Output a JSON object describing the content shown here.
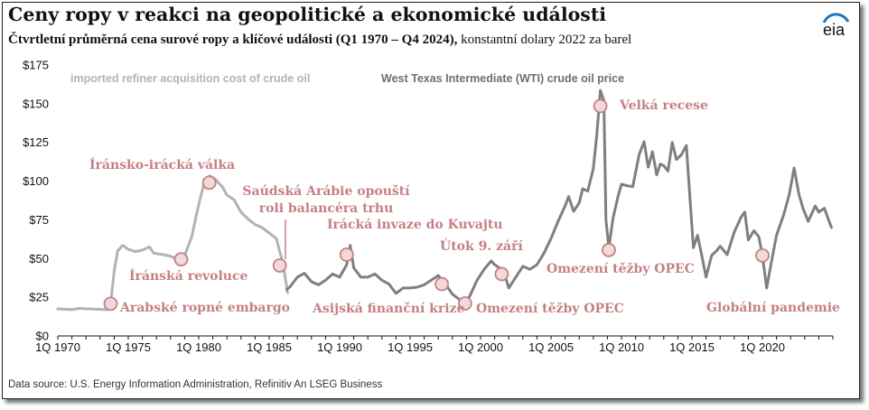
{
  "header": {
    "title": "Ceny ropy v reakci na geopolitické a ekonomické události",
    "subtitle_bold": "Čtvrtletní průměrná cena surové ropy a klíčové události (Q1 1970 – Q4 2024),",
    "subtitle_rest": " konstantní dolary 2022 za barel",
    "logo_text": "eia"
  },
  "footer": {
    "source": "Data source: U.S. Energy Information Administration, Refinitiv An LSEG Business"
  },
  "colors": {
    "imported_series": "#b3b3b3",
    "wti_series": "#7f7f7f",
    "event_marker": "#c67f84",
    "event_marker_fill": "#f1d9da",
    "axis": "#111111",
    "logo_blue": "#1f73b7"
  },
  "chart_data": {
    "type": "line",
    "title": "Ceny ropy v reakci na geopolitické a ekonomické události",
    "xlabel": "",
    "ylabel": "",
    "xlim": [
      1970.0,
      2025.0
    ],
    "ylim": [
      0,
      175
    ],
    "grid": false,
    "x_ticks": [
      {
        "value": 1970,
        "label": "1Q 1970"
      },
      {
        "value": 1975,
        "label": "1Q 1975"
      },
      {
        "value": 1980,
        "label": "1Q 1980"
      },
      {
        "value": 1985,
        "label": "1Q 1985"
      },
      {
        "value": 1990,
        "label": "1Q 1990"
      },
      {
        "value": 1995,
        "label": "1Q 1995"
      },
      {
        "value": 2000,
        "label": "1Q 2000"
      },
      {
        "value": 2005,
        "label": "1Q 2005"
      },
      {
        "value": 2010,
        "label": "1Q 2010"
      },
      {
        "value": 2015,
        "label": "1Q 2015"
      },
      {
        "value": 2020,
        "label": "1Q 2020"
      }
    ],
    "y_ticks": [
      {
        "value": 0,
        "label": "$0"
      },
      {
        "value": 25,
        "label": "$25"
      },
      {
        "value": 50,
        "label": "$50"
      },
      {
        "value": 75,
        "label": "$75"
      },
      {
        "value": 100,
        "label": "$100"
      },
      {
        "value": 125,
        "label": "$125"
      },
      {
        "value": 150,
        "label": "$150"
      },
      {
        "value": 175,
        "label": "$175"
      }
    ],
    "series": [
      {
        "name": "imported refiner acquisition cost of crude oil",
        "label_position": "top-left",
        "points": [
          [
            1970.0,
            17.5
          ],
          [
            1971.0,
            17.0
          ],
          [
            1971.5,
            17.8
          ],
          [
            1972.5,
            17.3
          ],
          [
            1973.5,
            17.0
          ],
          [
            1973.75,
            20.8
          ],
          [
            1974.0,
            42.0
          ],
          [
            1974.25,
            55.0
          ],
          [
            1974.6,
            58.5
          ],
          [
            1975.0,
            56.0
          ],
          [
            1975.5,
            54.5
          ],
          [
            1976.0,
            55.5
          ],
          [
            1976.5,
            57.5
          ],
          [
            1976.8,
            53.5
          ],
          [
            1977.5,
            52.5
          ],
          [
            1978.0,
            51.5
          ],
          [
            1978.5,
            49.5
          ],
          [
            1979.0,
            52.0
          ],
          [
            1979.5,
            64.0
          ],
          [
            1980.0,
            85.0
          ],
          [
            1980.4,
            99.0
          ],
          [
            1980.8,
            103.5
          ],
          [
            1981.2,
            101.0
          ],
          [
            1981.7,
            96.0
          ],
          [
            1982.0,
            91.0
          ],
          [
            1982.5,
            88.0
          ],
          [
            1983.0,
            80.0
          ],
          [
            1983.5,
            75.5
          ],
          [
            1984.0,
            72.0
          ],
          [
            1984.5,
            70.0
          ],
          [
            1985.0,
            66.5
          ],
          [
            1985.5,
            63.0
          ],
          [
            1986.0,
            46.0
          ],
          [
            1986.3,
            28.0
          ]
        ]
      },
      {
        "name": "West Texas Intermediate (WTI) crude oil price",
        "label_position": "top-center",
        "points": [
          [
            1986.25,
            30.0
          ],
          [
            1986.5,
            32.0
          ],
          [
            1987.0,
            38.0
          ],
          [
            1987.5,
            40.5
          ],
          [
            1988.0,
            35.0
          ],
          [
            1988.5,
            33.0
          ],
          [
            1989.0,
            36.0
          ],
          [
            1989.5,
            40.0
          ],
          [
            1990.0,
            38.0
          ],
          [
            1990.5,
            46.0
          ],
          [
            1990.75,
            58.5
          ],
          [
            1991.0,
            44.0
          ],
          [
            1991.5,
            38.0
          ],
          [
            1992.0,
            38.0
          ],
          [
            1992.5,
            40.0
          ],
          [
            1993.0,
            36.0
          ],
          [
            1993.5,
            33.5
          ],
          [
            1994.0,
            27.5
          ],
          [
            1994.5,
            31.0
          ],
          [
            1995.0,
            31.0
          ],
          [
            1995.5,
            31.5
          ],
          [
            1996.0,
            33.0
          ],
          [
            1996.5,
            36.0
          ],
          [
            1997.0,
            39.0
          ],
          [
            1997.5,
            33.5
          ],
          [
            1998.0,
            27.0
          ],
          [
            1998.5,
            23.5
          ],
          [
            1998.9,
            20.5
          ],
          [
            1999.25,
            26.0
          ],
          [
            1999.75,
            36.0
          ],
          [
            2000.25,
            43.0
          ],
          [
            2000.75,
            48.5
          ],
          [
            2001.0,
            46.0
          ],
          [
            2001.5,
            43.0
          ],
          [
            2001.8,
            37.0
          ],
          [
            2002.0,
            31.0
          ],
          [
            2002.5,
            38.0
          ],
          [
            2003.0,
            45.0
          ],
          [
            2003.5,
            43.0
          ],
          [
            2004.0,
            46.0
          ],
          [
            2004.5,
            53.5
          ],
          [
            2005.0,
            63.0
          ],
          [
            2005.5,
            74.0
          ],
          [
            2006.0,
            84.0
          ],
          [
            2006.25,
            90.0
          ],
          [
            2006.6,
            80.5
          ],
          [
            2007.0,
            86.0
          ],
          [
            2007.25,
            95.0
          ],
          [
            2007.6,
            93.5
          ],
          [
            2008.0,
            108.0
          ],
          [
            2008.25,
            130.0
          ],
          [
            2008.5,
            158.5
          ],
          [
            2008.75,
            152.0
          ],
          [
            2008.9,
            75.0
          ],
          [
            2009.1,
            57.0
          ],
          [
            2009.4,
            76.0
          ],
          [
            2009.75,
            90.0
          ],
          [
            2010.0,
            98.0
          ],
          [
            2010.4,
            97.0
          ],
          [
            2010.8,
            96.5
          ],
          [
            2011.25,
            117.0
          ],
          [
            2011.6,
            125.5
          ],
          [
            2011.9,
            109.0
          ],
          [
            2012.2,
            119.0
          ],
          [
            2012.5,
            104.0
          ],
          [
            2012.75,
            111.0
          ],
          [
            2013.0,
            110.0
          ],
          [
            2013.3,
            106.5
          ],
          [
            2013.6,
            125.0
          ],
          [
            2013.9,
            114.0
          ],
          [
            2014.25,
            117.0
          ],
          [
            2014.6,
            123.0
          ],
          [
            2014.9,
            84.0
          ],
          [
            2015.1,
            57.0
          ],
          [
            2015.4,
            65.0
          ],
          [
            2015.7,
            52.0
          ],
          [
            2016.0,
            38.0
          ],
          [
            2016.4,
            52.0
          ],
          [
            2016.75,
            55.0
          ],
          [
            2017.0,
            58.0
          ],
          [
            2017.5,
            52.5
          ],
          [
            2018.0,
            67.0
          ],
          [
            2018.5,
            77.0
          ],
          [
            2018.75,
            80.0
          ],
          [
            2019.0,
            62.0
          ],
          [
            2019.4,
            68.0
          ],
          [
            2019.75,
            64.0
          ],
          [
            2020.0,
            52.0
          ],
          [
            2020.3,
            31.0
          ],
          [
            2020.6,
            46.0
          ],
          [
            2021.0,
            65.0
          ],
          [
            2021.5,
            78.0
          ],
          [
            2021.9,
            91.0
          ],
          [
            2022.25,
            108.5
          ],
          [
            2022.6,
            91.0
          ],
          [
            2022.9,
            82.0
          ],
          [
            2023.25,
            74.0
          ],
          [
            2023.75,
            84.0
          ],
          [
            2024.0,
            80.0
          ],
          [
            2024.4,
            82.5
          ],
          [
            2024.9,
            70.0
          ]
        ]
      }
    ],
    "events": [
      {
        "label": "Arabské ropné embargo",
        "x": 1973.75,
        "y": 20.8
      },
      {
        "label": "Íránská revoluce",
        "x": 1978.75,
        "y": 49.5
      },
      {
        "label": "Íránsko-irácká válka",
        "x": 1980.75,
        "y": 99.0
      },
      {
        "label": "Saúdská Arábie opouští roli balancéra trhu",
        "x": 1985.75,
        "y": 45.5
      },
      {
        "label": "Irácká invaze do Kuvajtu",
        "x": 1990.5,
        "y": 52.5
      },
      {
        "label": "Asijská finanční krize",
        "x": 1997.25,
        "y": 33.5
      },
      {
        "label": "Omezení těžby OPEC",
        "x": 1998.9,
        "y": 21.0
      },
      {
        "label": "Útok 9. září",
        "x": 2001.5,
        "y": 40.0
      },
      {
        "label": "Velká recese",
        "x": 2008.5,
        "y": 148.5
      },
      {
        "label": "Omezení těžby OPEC",
        "x": 2009.1,
        "y": 55.5
      },
      {
        "label": "Globální pandemie",
        "x": 2020.0,
        "y": 52.0
      }
    ]
  }
}
